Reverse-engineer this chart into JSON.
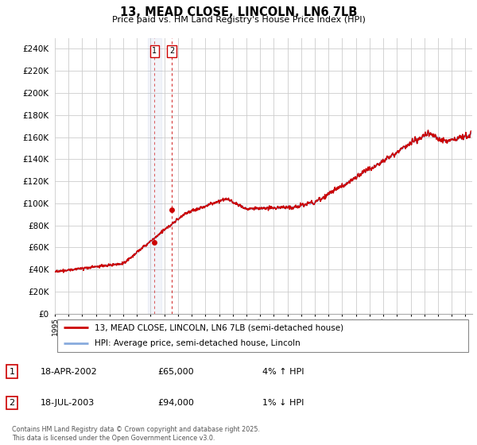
{
  "title": "13, MEAD CLOSE, LINCOLN, LN6 7LB",
  "subtitle": "Price paid vs. HM Land Registry's House Price Index (HPI)",
  "ylim": [
    0,
    250000
  ],
  "yticks": [
    0,
    20000,
    40000,
    60000,
    80000,
    100000,
    120000,
    140000,
    160000,
    180000,
    200000,
    220000,
    240000
  ],
  "x_start_year": 1995,
  "x_end_year": 2025,
  "sale1_date": 2002.28,
  "sale1_price": 65000,
  "sale1_date_str": "18-APR-2002",
  "sale1_hpi_pct": "4% ↑ HPI",
  "sale2_date": 2003.54,
  "sale2_price": 94000,
  "sale2_date_str": "18-JUL-2003",
  "sale2_hpi_pct": "1% ↓ HPI",
  "legend_line1": "13, MEAD CLOSE, LINCOLN, LN6 7LB (semi-detached house)",
  "legend_line2": "HPI: Average price, semi-detached house, Lincoln",
  "footer": "Contains HM Land Registry data © Crown copyright and database right 2025.\nThis data is licensed under the Open Government Licence v3.0.",
  "line_color_red": "#cc0000",
  "line_color_blue": "#88aadd",
  "vline1_color": "#cc0000",
  "vline2_color": "#cc0000",
  "shade_color": "#aabbdd",
  "background_color": "#ffffff",
  "grid_color": "#cccccc"
}
